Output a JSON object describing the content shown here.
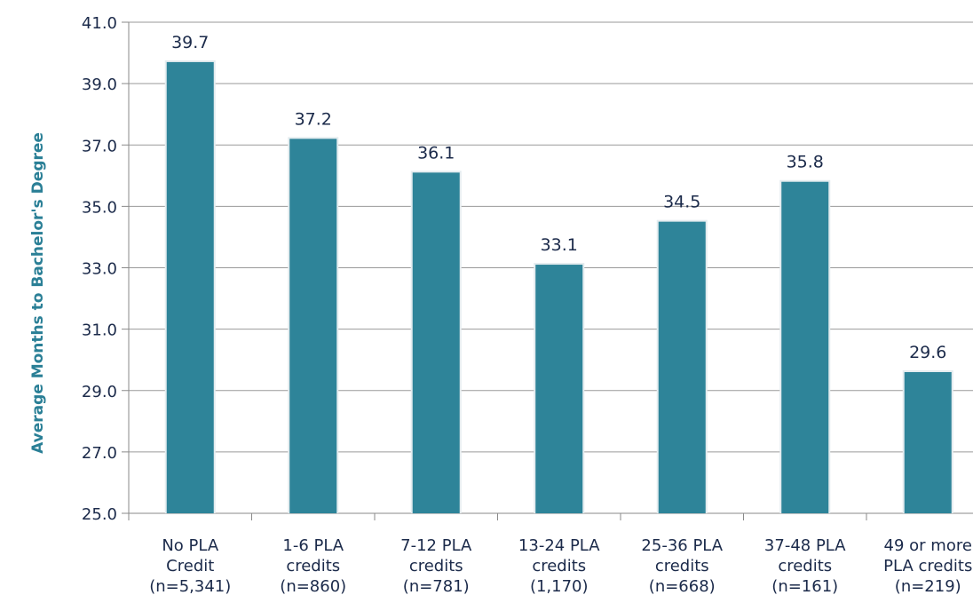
{
  "chart_data": {
    "type": "bar",
    "title": "",
    "xlabel": "",
    "ylabel": "Average Months to Bachelor's Degree",
    "ylim": [
      25.0,
      41.0
    ],
    "yticks": [
      "25.0",
      "27.0",
      "29.0",
      "31.0",
      "33.0",
      "35.0",
      "37.0",
      "39.0",
      "41.0"
    ],
    "grid": true,
    "legend": "none",
    "bar_color": "#2e8499",
    "categories": [
      [
        "No PLA",
        "Credit",
        "(n=5,341)"
      ],
      [
        "1-6 PLA",
        "credits",
        "(n=860)"
      ],
      [
        "7-12 PLA",
        "credits",
        "(n=781)"
      ],
      [
        "13-24 PLA",
        "credits",
        "(1,170)"
      ],
      [
        "25-36 PLA",
        "credits",
        "(n=668)"
      ],
      [
        "37-48 PLA",
        "credits",
        "(n=161)"
      ],
      [
        "49 or more",
        "PLA credits",
        "(n=219)"
      ]
    ],
    "values": [
      39.7,
      37.2,
      36.1,
      33.1,
      34.5,
      35.8,
      29.6
    ],
    "value_labels": [
      "39.7",
      "37.2",
      "36.1",
      "33.1",
      "34.5",
      "35.8",
      "29.6"
    ]
  }
}
